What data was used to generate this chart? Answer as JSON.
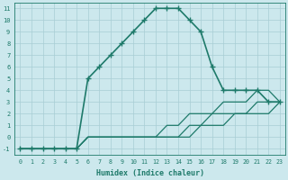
{
  "xlabel": "Humidex (Indice chaleur)",
  "xlim": [
    -0.5,
    23.5
  ],
  "ylim": [
    -1.5,
    11.5
  ],
  "xticks": [
    0,
    1,
    2,
    3,
    4,
    5,
    6,
    7,
    8,
    9,
    10,
    11,
    12,
    13,
    14,
    15,
    16,
    17,
    18,
    19,
    20,
    21,
    22,
    23
  ],
  "yticks": [
    -1,
    0,
    1,
    2,
    3,
    4,
    5,
    6,
    7,
    8,
    9,
    10,
    11
  ],
  "background_color": "#cce8ed",
  "grid_color": "#a8cdd4",
  "line_color": "#1e7a6a",
  "curves": [
    {
      "x": [
        0,
        1,
        2,
        3,
        4,
        5,
        6,
        7,
        8,
        9,
        10,
        11,
        12,
        13,
        14,
        15,
        16,
        17,
        18,
        19,
        20,
        21,
        22,
        23
      ],
      "y": [
        -1,
        -1,
        -1,
        -1,
        -1,
        -1,
        5,
        6,
        7,
        8,
        9,
        10,
        11,
        11,
        11,
        10,
        9,
        6,
        4,
        4,
        4,
        4,
        3,
        3
      ],
      "marker": true,
      "linewidth": 1.2,
      "linestyle": "-"
    },
    {
      "x": [
        0,
        1,
        2,
        3,
        4,
        5,
        6,
        7,
        8,
        9,
        10,
        11,
        12,
        13,
        14,
        15,
        16,
        17,
        18,
        19,
        20,
        21,
        22,
        23
      ],
      "y": [
        -1,
        -1,
        -1,
        -1,
        -1,
        -1,
        0,
        0,
        0,
        0,
        0,
        0,
        0,
        1,
        1,
        2,
        2,
        2,
        3,
        3,
        3,
        4,
        4,
        3
      ],
      "marker": false,
      "linewidth": 0.9,
      "linestyle": "-"
    },
    {
      "x": [
        0,
        1,
        2,
        3,
        4,
        5,
        6,
        7,
        8,
        9,
        10,
        11,
        12,
        13,
        14,
        15,
        16,
        17,
        18,
        19,
        20,
        21,
        22,
        23
      ],
      "y": [
        -1,
        -1,
        -1,
        -1,
        -1,
        -1,
        0,
        0,
        0,
        0,
        0,
        0,
        0,
        0,
        0,
        1,
        1,
        2,
        2,
        2,
        2,
        3,
        3,
        3
      ],
      "marker": false,
      "linewidth": 0.9,
      "linestyle": "-"
    },
    {
      "x": [
        0,
        1,
        2,
        3,
        4,
        5,
        6,
        7,
        8,
        9,
        10,
        11,
        12,
        13,
        14,
        15,
        16,
        17,
        18,
        19,
        20,
        21,
        22,
        23
      ],
      "y": [
        -1,
        -1,
        -1,
        -1,
        -1,
        -1,
        0,
        0,
        0,
        0,
        0,
        0,
        0,
        0,
        0,
        0,
        1,
        1,
        1,
        2,
        2,
        2,
        2,
        3
      ],
      "marker": false,
      "linewidth": 0.9,
      "linestyle": "-"
    }
  ]
}
